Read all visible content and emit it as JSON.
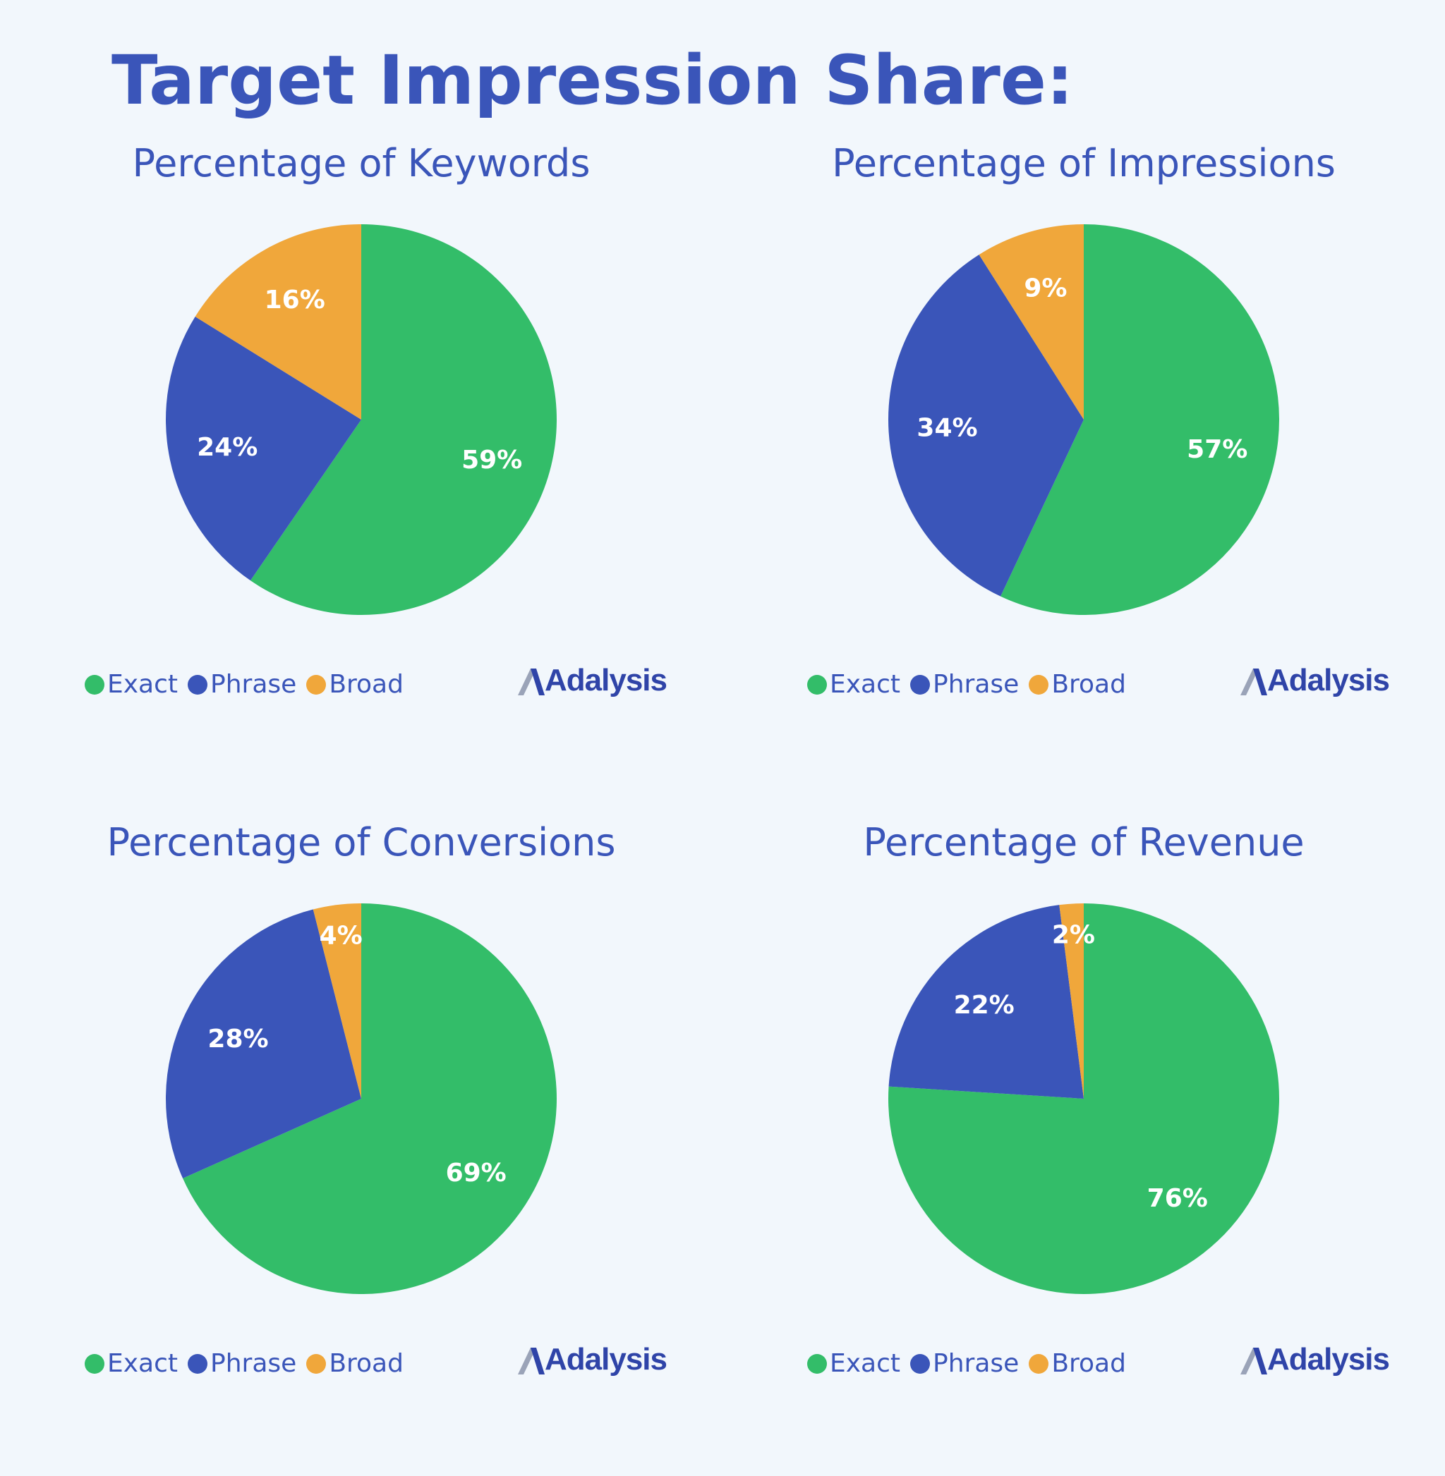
{
  "page": {
    "title": "Target Impression Share:"
  },
  "colors": {
    "exact": "#33bd69",
    "phrase": "#3a55b9",
    "broad": "#f0a73b",
    "brand_blue": "#3a55b9",
    "background": "#f2f7fc"
  },
  "legend_labels": [
    "Exact",
    "Phrase",
    "Broad"
  ],
  "brand_name": "Adalysis",
  "chart_data": [
    {
      "type": "pie",
      "title": "Percentage of Keywords",
      "slices": [
        {
          "label": "Exact",
          "value": 59,
          "display": "59%",
          "color": "#33bd69"
        },
        {
          "label": "Phrase",
          "value": 24,
          "display": "24%",
          "color": "#3a55b9"
        },
        {
          "label": "Broad",
          "value": 16,
          "display": "16%",
          "color": "#f0a73b"
        }
      ]
    },
    {
      "type": "pie",
      "title": "Percentage of Impressions",
      "slices": [
        {
          "label": "Exact",
          "value": 57,
          "display": "57%",
          "color": "#33bd69"
        },
        {
          "label": "Phrase",
          "value": 34,
          "display": "34%",
          "color": "#3a55b9"
        },
        {
          "label": "Broad",
          "value": 9,
          "display": "9%",
          "color": "#f0a73b"
        }
      ]
    },
    {
      "type": "pie",
      "title": "Percentage of Conversions",
      "slices": [
        {
          "label": "Exact",
          "value": 69,
          "display": "69%",
          "color": "#33bd69"
        },
        {
          "label": "Phrase",
          "value": 28,
          "display": "28%",
          "color": "#3a55b9"
        },
        {
          "label": "Broad",
          "value": 4,
          "display": "4%",
          "color": "#f0a73b"
        }
      ]
    },
    {
      "type": "pie",
      "title": "Percentage of Revenue",
      "slices": [
        {
          "label": "Exact",
          "value": 76,
          "display": "76%",
          "color": "#33bd69"
        },
        {
          "label": "Phrase",
          "value": 22,
          "display": "22%",
          "color": "#3a55b9"
        },
        {
          "label": "Broad",
          "value": 2,
          "display": "2%",
          "color": "#f0a73b"
        }
      ]
    }
  ]
}
